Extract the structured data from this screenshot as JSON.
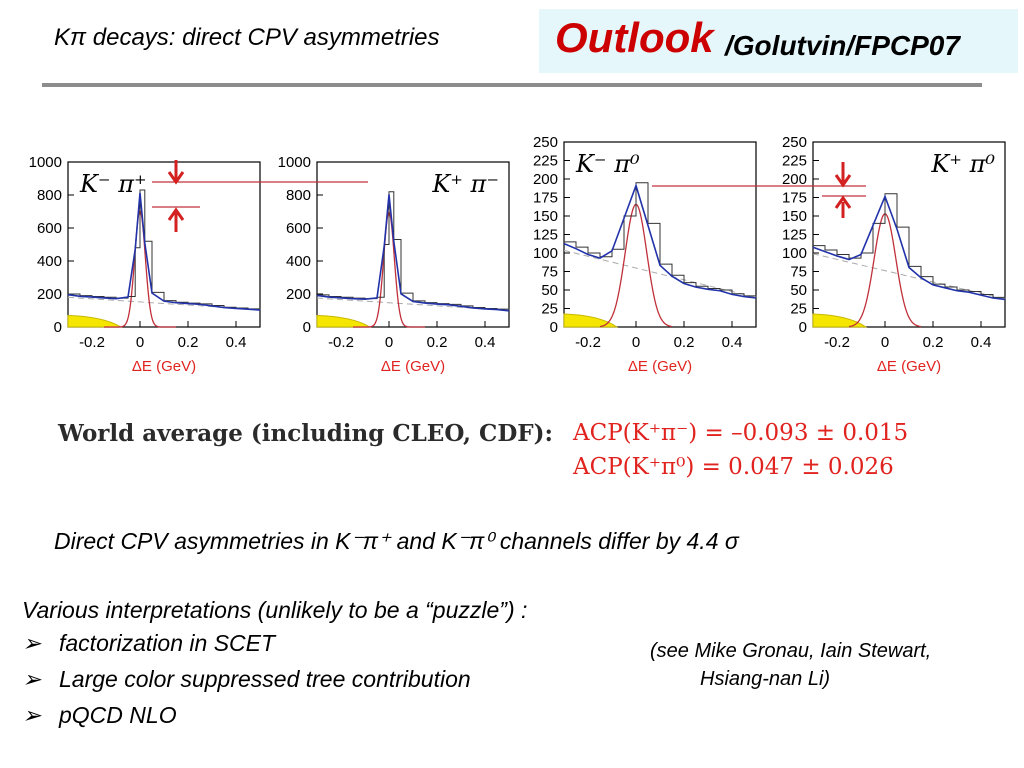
{
  "header": {
    "subtitle": "Kπ  decays:  direct CPV asymmetries",
    "title_main": "Outlook",
    "title_rest": "/Golutvin/FPCP07",
    "box_color": "#e6f7fb",
    "title_color": "#cc0000"
  },
  "chart_data": [
    {
      "type": "line",
      "panel_label": "K⁻ π⁺",
      "xlabel": "ΔE (GeV)",
      "xlim": [
        -0.3,
        0.5
      ],
      "xticks": [
        "-0.2",
        "0",
        "0.2",
        "0.4"
      ],
      "ylim": [
        0,
        1000
      ],
      "yticks": [
        "0",
        "200",
        "400",
        "600",
        "800",
        "1000"
      ],
      "series": [
        {
          "values_x": [
            -0.3,
            -0.25,
            -0.2,
            -0.15,
            -0.1,
            -0.05,
            -0.02,
            0,
            0.02,
            0.05,
            0.1,
            0.15,
            0.2,
            0.25,
            0.3,
            0.35,
            0.4,
            0.45,
            0.5
          ],
          "values_y": [
            200,
            190,
            185,
            180,
            175,
            185,
            480,
            830,
            520,
            210,
            160,
            150,
            145,
            140,
            130,
            120,
            115,
            110,
            105
          ]
        }
      ]
    },
    {
      "type": "line",
      "panel_label": "K⁺ π⁻",
      "xlabel": "ΔE (GeV)",
      "xlim": [
        -0.3,
        0.5
      ],
      "xticks": [
        "-0.2",
        "0",
        "0.2",
        "0.4"
      ],
      "ylim": [
        0,
        1000
      ],
      "yticks": [
        "0",
        "200",
        "400",
        "600",
        "800",
        "1000"
      ],
      "series": [
        {
          "values_x": [
            -0.3,
            -0.25,
            -0.2,
            -0.15,
            -0.1,
            -0.05,
            -0.02,
            0,
            0.02,
            0.05,
            0.1,
            0.15,
            0.2,
            0.25,
            0.3,
            0.35,
            0.4,
            0.45,
            0.5
          ],
          "values_y": [
            195,
            185,
            180,
            175,
            172,
            180,
            500,
            820,
            530,
            205,
            158,
            148,
            142,
            137,
            128,
            118,
            112,
            108,
            100
          ]
        }
      ]
    },
    {
      "type": "line",
      "panel_label": "K⁻ π⁰",
      "xlabel": "ΔE (GeV)",
      "xlim": [
        -0.3,
        0.5
      ],
      "xticks": [
        "-0.2",
        "0",
        "0.2",
        "0.4"
      ],
      "ylim": [
        0,
        250
      ],
      "yticks": [
        "0",
        "25",
        "50",
        "75",
        "100",
        "125",
        "150",
        "175",
        "200",
        "225",
        "250"
      ],
      "series": [
        {
          "values_x": [
            -0.3,
            -0.25,
            -0.2,
            -0.15,
            -0.1,
            -0.05,
            0,
            0.05,
            0.1,
            0.15,
            0.2,
            0.25,
            0.3,
            0.35,
            0.4,
            0.45,
            0.5
          ],
          "values_y": [
            115,
            108,
            100,
            95,
            105,
            150,
            195,
            140,
            85,
            70,
            60,
            55,
            52,
            50,
            45,
            42,
            40
          ]
        }
      ]
    },
    {
      "type": "line",
      "panel_label": "K⁺ π⁰",
      "xlabel": "ΔE (GeV)",
      "xlim": [
        -0.3,
        0.5
      ],
      "xticks": [
        "-0.2",
        "0",
        "0.2",
        "0.4"
      ],
      "ylim": [
        0,
        250
      ],
      "yticks": [
        "0",
        "25",
        "50",
        "75",
        "100",
        "125",
        "150",
        "175",
        "200",
        "225",
        "250"
      ],
      "series": [
        {
          "values_x": [
            -0.3,
            -0.25,
            -0.2,
            -0.15,
            -0.1,
            -0.05,
            0,
            0.05,
            0.1,
            0.15,
            0.2,
            0.25,
            0.3,
            0.35,
            0.4,
            0.45,
            0.5
          ],
          "values_y": [
            110,
            104,
            98,
            93,
            100,
            140,
            180,
            135,
            82,
            68,
            58,
            54,
            50,
            48,
            44,
            40,
            38
          ]
        }
      ]
    }
  ],
  "world_average": {
    "label": "World average (including CLEO, CDF):",
    "acp_kpi_minus": "ACP(K⁺π⁻) = –0.093 ± 0.015",
    "acp_kpi_zero": "ACP(K⁺π⁰) = 0.047 ± 0.026"
  },
  "statement": "Direct CPV asymmetries in K⁻π⁺ and K⁻π⁰  channels differ by 4.4 σ",
  "interpretations": {
    "heading": "Various interpretations (unlikely to be a “puzzle”) :",
    "bullets": [
      "factorization in SCET",
      "Large color suppressed tree contribution",
      "pQCD NLO"
    ],
    "bullet_marker": "➢",
    "note_line1": "(see Mike Gronau, Iain Stewart,",
    "note_line2": "Hsiang-nan Li)"
  }
}
